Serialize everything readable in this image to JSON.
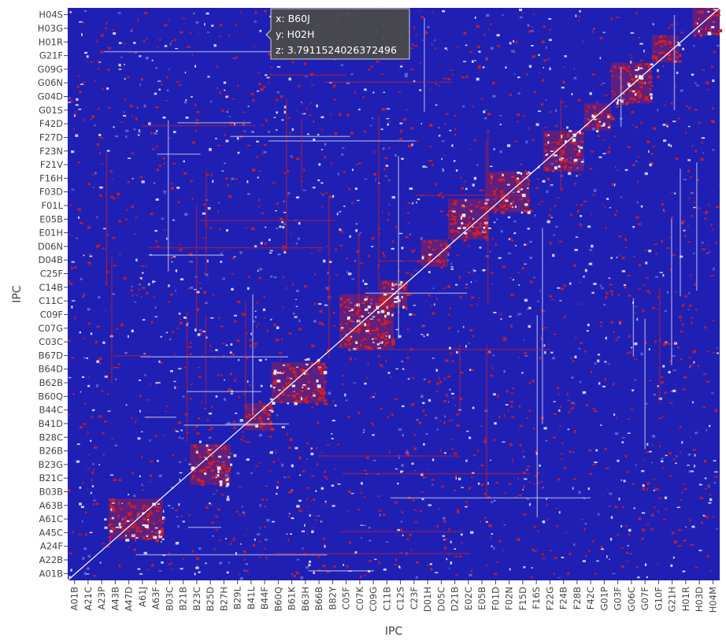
{
  "chart_data": {
    "type": "heatmap",
    "xlabel": "IPC",
    "ylabel": "IPC",
    "colorscale": {
      "low": "#1f1fb4",
      "mid": "#e6e6f0",
      "high": "#d41f1f"
    },
    "diagonal_color": "#ffffff",
    "grid": false,
    "x_ticks": [
      "A01B",
      "A21C",
      "A23P",
      "A43B",
      "A47D",
      "A61J",
      "A63F",
      "B03C",
      "B21B",
      "B23C",
      "B25D",
      "B27H",
      "B29L",
      "B41L",
      "B44F",
      "B60Q",
      "B61K",
      "B63H",
      "B66B",
      "B82Y",
      "C05F",
      "C07K",
      "C09G",
      "C11B",
      "C12S",
      "C23F",
      "D01H",
      "D05C",
      "D21B",
      "E02C",
      "E05B",
      "F01D",
      "F02N",
      "F15D",
      "F16S",
      "F22G",
      "F24B",
      "F28B",
      "F42C",
      "G01P",
      "G03F",
      "G06C",
      "G07F",
      "G10F",
      "G21H",
      "H01R",
      "H03D",
      "H04M"
    ],
    "y_ticks": [
      "A01B",
      "A22B",
      "A24F",
      "A45C",
      "A61C",
      "A63B",
      "B03B",
      "B21C",
      "B23G",
      "B26B",
      "B28C",
      "B41D",
      "B44C",
      "B60Q",
      "B62B",
      "B64D",
      "B67D",
      "C03C",
      "C07G",
      "C09F",
      "C11C",
      "C14B",
      "C25F",
      "D04B",
      "D06N",
      "E01H",
      "E05B",
      "F01L",
      "F03D",
      "F16H",
      "F21V",
      "F23N",
      "F27D",
      "F42D",
      "G01S",
      "G04D",
      "G06N",
      "G09G",
      "G21F",
      "H01R",
      "H03G",
      "H04S"
    ],
    "blocks": [
      {
        "x_range": [
          "A01B",
          "A24F"
        ],
        "y_range": [
          "A01B",
          "A24F"
        ]
      },
      {
        "x_range": [
          "A43B",
          "A63F"
        ],
        "y_range": [
          "A45C",
          "A63B"
        ]
      },
      {
        "x_range": [
          "B23C",
          "B27H"
        ],
        "y_range": [
          "B21C",
          "B26B"
        ]
      },
      {
        "x_range": [
          "B41L",
          "B44F"
        ],
        "y_range": [
          "B41D",
          "B44C"
        ]
      },
      {
        "x_range": [
          "B60Q",
          "B66B"
        ],
        "y_range": [
          "B60Q",
          "B64D"
        ]
      },
      {
        "x_range": [
          "C05F",
          "C11B"
        ],
        "y_range": [
          "C03C",
          "C11C"
        ]
      },
      {
        "x_range": [
          "C11B",
          "C12S"
        ],
        "y_range": [
          "C11C",
          "C14B"
        ]
      },
      {
        "x_range": [
          "D01H",
          "D05C"
        ],
        "y_range": [
          "D04B",
          "D06N"
        ]
      },
      {
        "x_range": [
          "D21B",
          "E05B"
        ],
        "y_range": [
          "E01H",
          "F01L"
        ]
      },
      {
        "x_range": [
          "F01D",
          "F15D"
        ],
        "y_range": [
          "F01L",
          "F16H"
        ]
      },
      {
        "x_range": [
          "F22G",
          "F28B"
        ],
        "y_range": [
          "F21V",
          "F27D"
        ]
      },
      {
        "x_range": [
          "F42C",
          "G01P"
        ],
        "y_range": [
          "F42D",
          "G01S"
        ]
      },
      {
        "x_range": [
          "G03F",
          "G07F"
        ],
        "y_range": [
          "G04D",
          "G09G"
        ]
      },
      {
        "x_range": [
          "G10F",
          "G21H"
        ],
        "y_range": [
          "G21F",
          "H01R"
        ]
      },
      {
        "x_range": [
          "H03D",
          "H04M"
        ],
        "y_range": [
          "H03G",
          "H04S"
        ]
      }
    ],
    "tooltip": {
      "x_line": "x: B60J",
      "y_line": "y: H02H",
      "z_line": "z: 3.7911524026372496",
      "x_value": "B60J",
      "y_value": "H02H"
    }
  }
}
